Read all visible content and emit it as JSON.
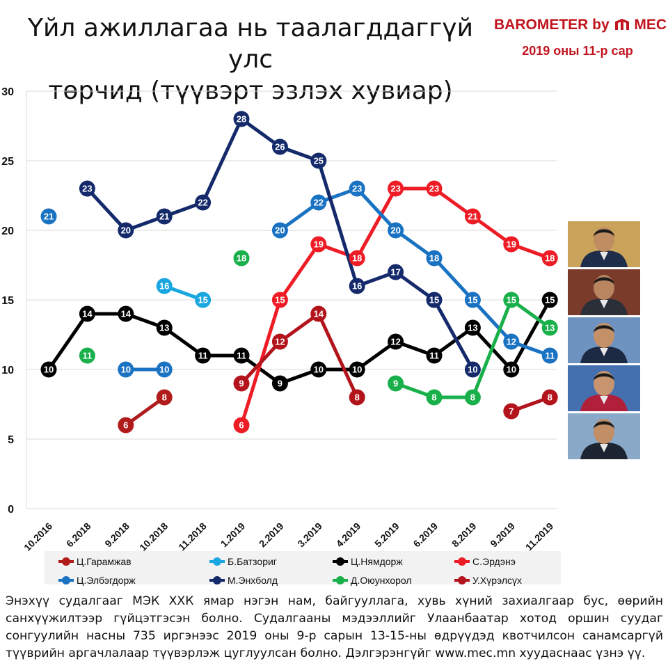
{
  "title_line1": "Үйл ажиллагаа нь таалагддаггүй улс",
  "title_line2": "төрчид (түүвэрт эзлэх хувиар)",
  "brand": {
    "name": "BAROMETER by",
    "logo_text": "MEC",
    "date": "2019 оны 11-р сар"
  },
  "footer": "Энэхүү судалгааг МЭК ХХК ямар нэгэн нам, байгууллага, хувь хүний захиалгаар бус, өөрийн санхүүжилтээр гүйцэтгэсэн болно. Судалгааны мэдээллийг Улаанбаатар хотод оршин суудаг сонгуулийн насны 735 иргэнээс 2019 оны 9-р сарын 13-15-ны өдрүүдэд квотчилсон санамсаргүй түүврийн аргачлалаар түүвэрлэж цуглуулсан болно. Дэлгэрэнгүйг www.mec.mn хуудаснаас үзнэ үү.",
  "photos": [
    {
      "name": "photo-1",
      "bg": "#c9a35a",
      "suit": "#1d2d4a",
      "face": "#c08c62"
    },
    {
      "name": "photo-2",
      "bg": "#7a3b2a",
      "suit": "#2b2f38",
      "face": "#b98560"
    },
    {
      "name": "photo-3",
      "bg": "#6f93c0",
      "suit": "#1c2a44",
      "face": "#c49068"
    },
    {
      "name": "photo-4",
      "bg": "#4470b0",
      "suit": "#b0203a",
      "face": "#c89470"
    },
    {
      "name": "photo-5",
      "bg": "#8aa8c8",
      "suit": "#1b2430",
      "face": "#c28e66"
    }
  ],
  "chart_data": {
    "type": "line",
    "categories": [
      "10.2016",
      "6.2018",
      "9.2018",
      "10.2018",
      "11.2018",
      "1.2019",
      "2.2019",
      "3.2019",
      "4.2019",
      "5.2019",
      "6.2019",
      "8.2019",
      "9.2019",
      "11.2019"
    ],
    "ylim": [
      0,
      30
    ],
    "yticks": [
      0,
      5,
      10,
      15,
      20,
      25,
      30
    ],
    "grid": true,
    "legend_position": "bottom",
    "series": [
      {
        "name": "Ц.Гарамжав",
        "color": "#b01c1c",
        "values": [
          null,
          null,
          6,
          8,
          null,
          null,
          null,
          null,
          null,
          null,
          null,
          null,
          null,
          null
        ]
      },
      {
        "name": "Б.Батзориг",
        "color": "#1aa7e0",
        "values": [
          null,
          null,
          null,
          16,
          15,
          null,
          null,
          null,
          null,
          null,
          null,
          null,
          null,
          null
        ]
      },
      {
        "name": "Ц.Нямдорж",
        "color": "#000000",
        "values": [
          10,
          14,
          14,
          13,
          11,
          11,
          9,
          10,
          10,
          12,
          11,
          13,
          10,
          15
        ]
      },
      {
        "name": "С.Эрдэнэ",
        "color": "#ee1c25",
        "values": [
          null,
          null,
          null,
          null,
          null,
          6,
          15,
          19,
          18,
          23,
          23,
          21,
          19,
          18
        ]
      },
      {
        "name": "Ц.Элбэгдорж",
        "color": "#1a72c2",
        "values": [
          21,
          null,
          10,
          10,
          null,
          null,
          20,
          22,
          23,
          20,
          18,
          15,
          12,
          11
        ]
      },
      {
        "name": "М.Энхболд",
        "color": "#142a6b",
        "values": [
          null,
          23,
          20,
          21,
          22,
          28,
          26,
          25,
          16,
          17,
          15,
          10,
          null,
          null
        ]
      },
      {
        "name": "Д.Оюунхорол",
        "color": "#19b04b",
        "values": [
          null,
          11,
          null,
          null,
          null,
          18,
          null,
          null,
          null,
          9,
          8,
          8,
          15,
          13
        ]
      },
      {
        "name": "У.Хүрэлсүх",
        "color": "#b3141c",
        "values": [
          null,
          null,
          null,
          null,
          null,
          9,
          12,
          14,
          8,
          null,
          null,
          null,
          7,
          8
        ]
      }
    ]
  }
}
